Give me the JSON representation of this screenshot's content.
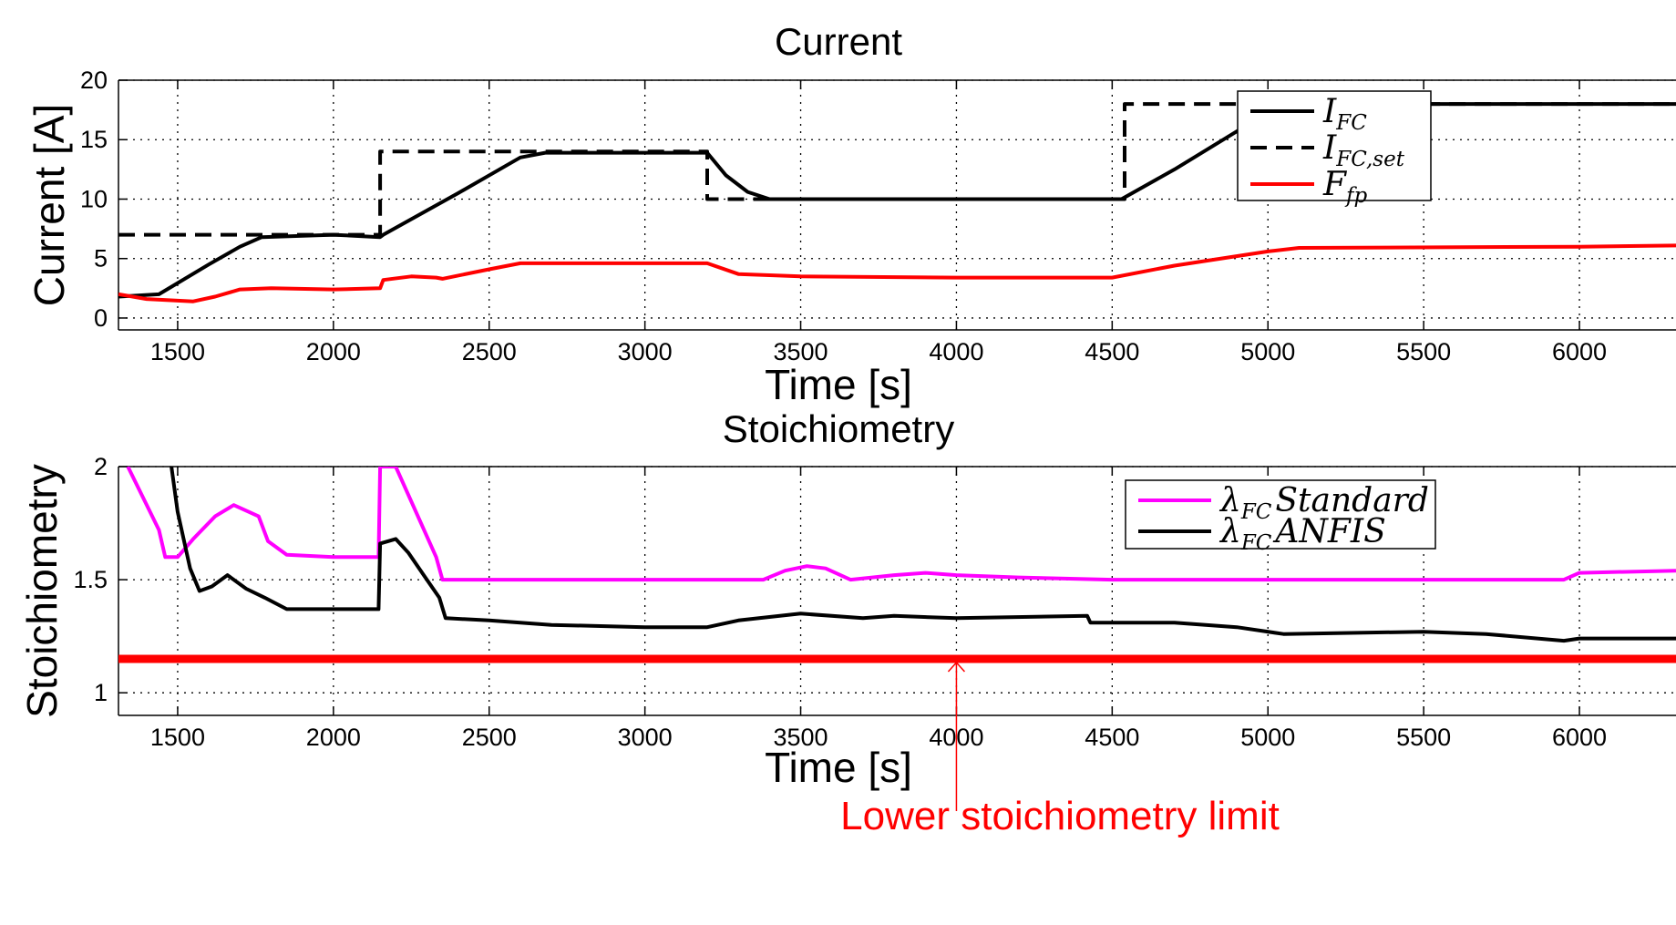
{
  "chart_data": [
    {
      "type": "line",
      "title": "Current",
      "xlabel": "Time [s]",
      "ylabel": "Current [A]",
      "xlim": [
        1310,
        6310
      ],
      "ylim": [
        -1,
        20
      ],
      "xticks": [
        1500,
        2000,
        2500,
        3000,
        3500,
        4000,
        4500,
        5000,
        5500,
        6000
      ],
      "yticks": [
        0,
        5,
        10,
        15,
        20
      ],
      "grid": true,
      "legend_position": "top-right",
      "series": [
        {
          "name": "I_FC",
          "legend": {
            "base": "I",
            "sub": "FC"
          },
          "color": "#000000",
          "style": "solid",
          "x": [
            1310,
            1440,
            1600,
            1700,
            1770,
            2000,
            2150,
            2160,
            2400,
            2600,
            2680,
            3000,
            3200,
            3260,
            3330,
            3400,
            4000,
            4530,
            4700,
            4950,
            5050,
            5500,
            6000,
            6310
          ],
          "y": [
            1.8,
            2.0,
            4.5,
            6.0,
            6.8,
            7.0,
            6.8,
            7.0,
            10.5,
            13.5,
            13.9,
            13.9,
            13.9,
            12.0,
            10.6,
            10.0,
            10.0,
            10.0,
            12.5,
            16.5,
            17.8,
            18.0,
            18.0,
            18.0
          ]
        },
        {
          "name": "I_FC,set",
          "legend": {
            "base": "I",
            "sub": "FC,set"
          },
          "color": "#000000",
          "style": "dashed",
          "x": [
            1310,
            2150,
            2150,
            3200,
            3200,
            4540,
            4540,
            6310
          ],
          "y": [
            7,
            7,
            14,
            14,
            10,
            10,
            18,
            18
          ]
        },
        {
          "name": "F_fp",
          "legend": {
            "base": "F",
            "sub": "fp"
          },
          "color": "#ff0000",
          "style": "solid",
          "x": [
            1310,
            1400,
            1550,
            1620,
            1700,
            1800,
            2000,
            2150,
            2160,
            2250,
            2330,
            2350,
            2500,
            2600,
            3000,
            3200,
            3300,
            3500,
            4000,
            4500,
            4700,
            5000,
            5100,
            6000,
            6310
          ],
          "y": [
            2.0,
            1.6,
            1.4,
            1.8,
            2.4,
            2.5,
            2.4,
            2.5,
            3.2,
            3.5,
            3.4,
            3.3,
            4.1,
            4.6,
            4.6,
            4.6,
            3.7,
            3.5,
            3.4,
            3.4,
            4.4,
            5.6,
            5.9,
            6.0,
            6.1
          ]
        }
      ]
    },
    {
      "type": "line",
      "title": "Stoichiometry",
      "xlabel": "Time [s]",
      "ylabel": "Stoichiometry",
      "xlim": [
        1310,
        6310
      ],
      "ylim": [
        0.9,
        2.0
      ],
      "xticks": [
        1500,
        2000,
        2500,
        3000,
        3500,
        4000,
        4500,
        5000,
        5500,
        6000
      ],
      "yticks": [
        1,
        1.5,
        2
      ],
      "ytick_labels": [
        "1",
        "1.5",
        "2"
      ],
      "grid": true,
      "legend_position": "top-right",
      "series": [
        {
          "name": "λ_FC Standard",
          "legend": {
            "base": "λ",
            "sub": "FC",
            "suffix": "Standard"
          },
          "color": "#ff00ff",
          "style": "solid",
          "x": [
            1340,
            1440,
            1460,
            1500,
            1550,
            1620,
            1680,
            1760,
            1790,
            1850,
            2000,
            2145,
            2150,
            2200,
            2330,
            2350,
            3000,
            3380,
            3450,
            3520,
            3580,
            3660,
            3800,
            3900,
            4000,
            4200,
            4500,
            5000,
            5500,
            5950,
            6000,
            6310
          ],
          "y": [
            2.0,
            1.72,
            1.6,
            1.6,
            1.68,
            1.78,
            1.83,
            1.78,
            1.67,
            1.61,
            1.6,
            1.6,
            2.0,
            2.0,
            1.6,
            1.5,
            1.5,
            1.5,
            1.54,
            1.56,
            1.55,
            1.5,
            1.52,
            1.53,
            1.52,
            1.51,
            1.5,
            1.5,
            1.5,
            1.5,
            1.53,
            1.54
          ]
        },
        {
          "name": "λ_FC ANFIS",
          "legend": {
            "base": "λ",
            "sub": "FC",
            "suffix": "ANFIS"
          },
          "color": "#000000",
          "style": "solid",
          "x": [
            1480,
            1500,
            1540,
            1570,
            1610,
            1660,
            1720,
            1780,
            1850,
            2000,
            2145,
            2150,
            2200,
            2240,
            2300,
            2340,
            2360,
            2500,
            2700,
            3000,
            3200,
            3300,
            3500,
            3700,
            3800,
            4000,
            4420,
            4430,
            4700,
            4900,
            5050,
            5500,
            5700,
            5950,
            6000,
            6310
          ],
          "y": [
            2.0,
            1.8,
            1.55,
            1.45,
            1.47,
            1.52,
            1.46,
            1.42,
            1.37,
            1.37,
            1.37,
            1.66,
            1.68,
            1.62,
            1.5,
            1.42,
            1.33,
            1.32,
            1.3,
            1.29,
            1.29,
            1.32,
            1.35,
            1.33,
            1.34,
            1.33,
            1.34,
            1.31,
            1.31,
            1.29,
            1.26,
            1.27,
            1.26,
            1.23,
            1.24,
            1.24
          ]
        }
      ],
      "hline": {
        "y": 1.15,
        "color": "#ff0000"
      },
      "annotation": {
        "text": "Lower stoichiometry limit",
        "x": 4000,
        "y": 1.15,
        "color": "#ff0000"
      }
    }
  ]
}
